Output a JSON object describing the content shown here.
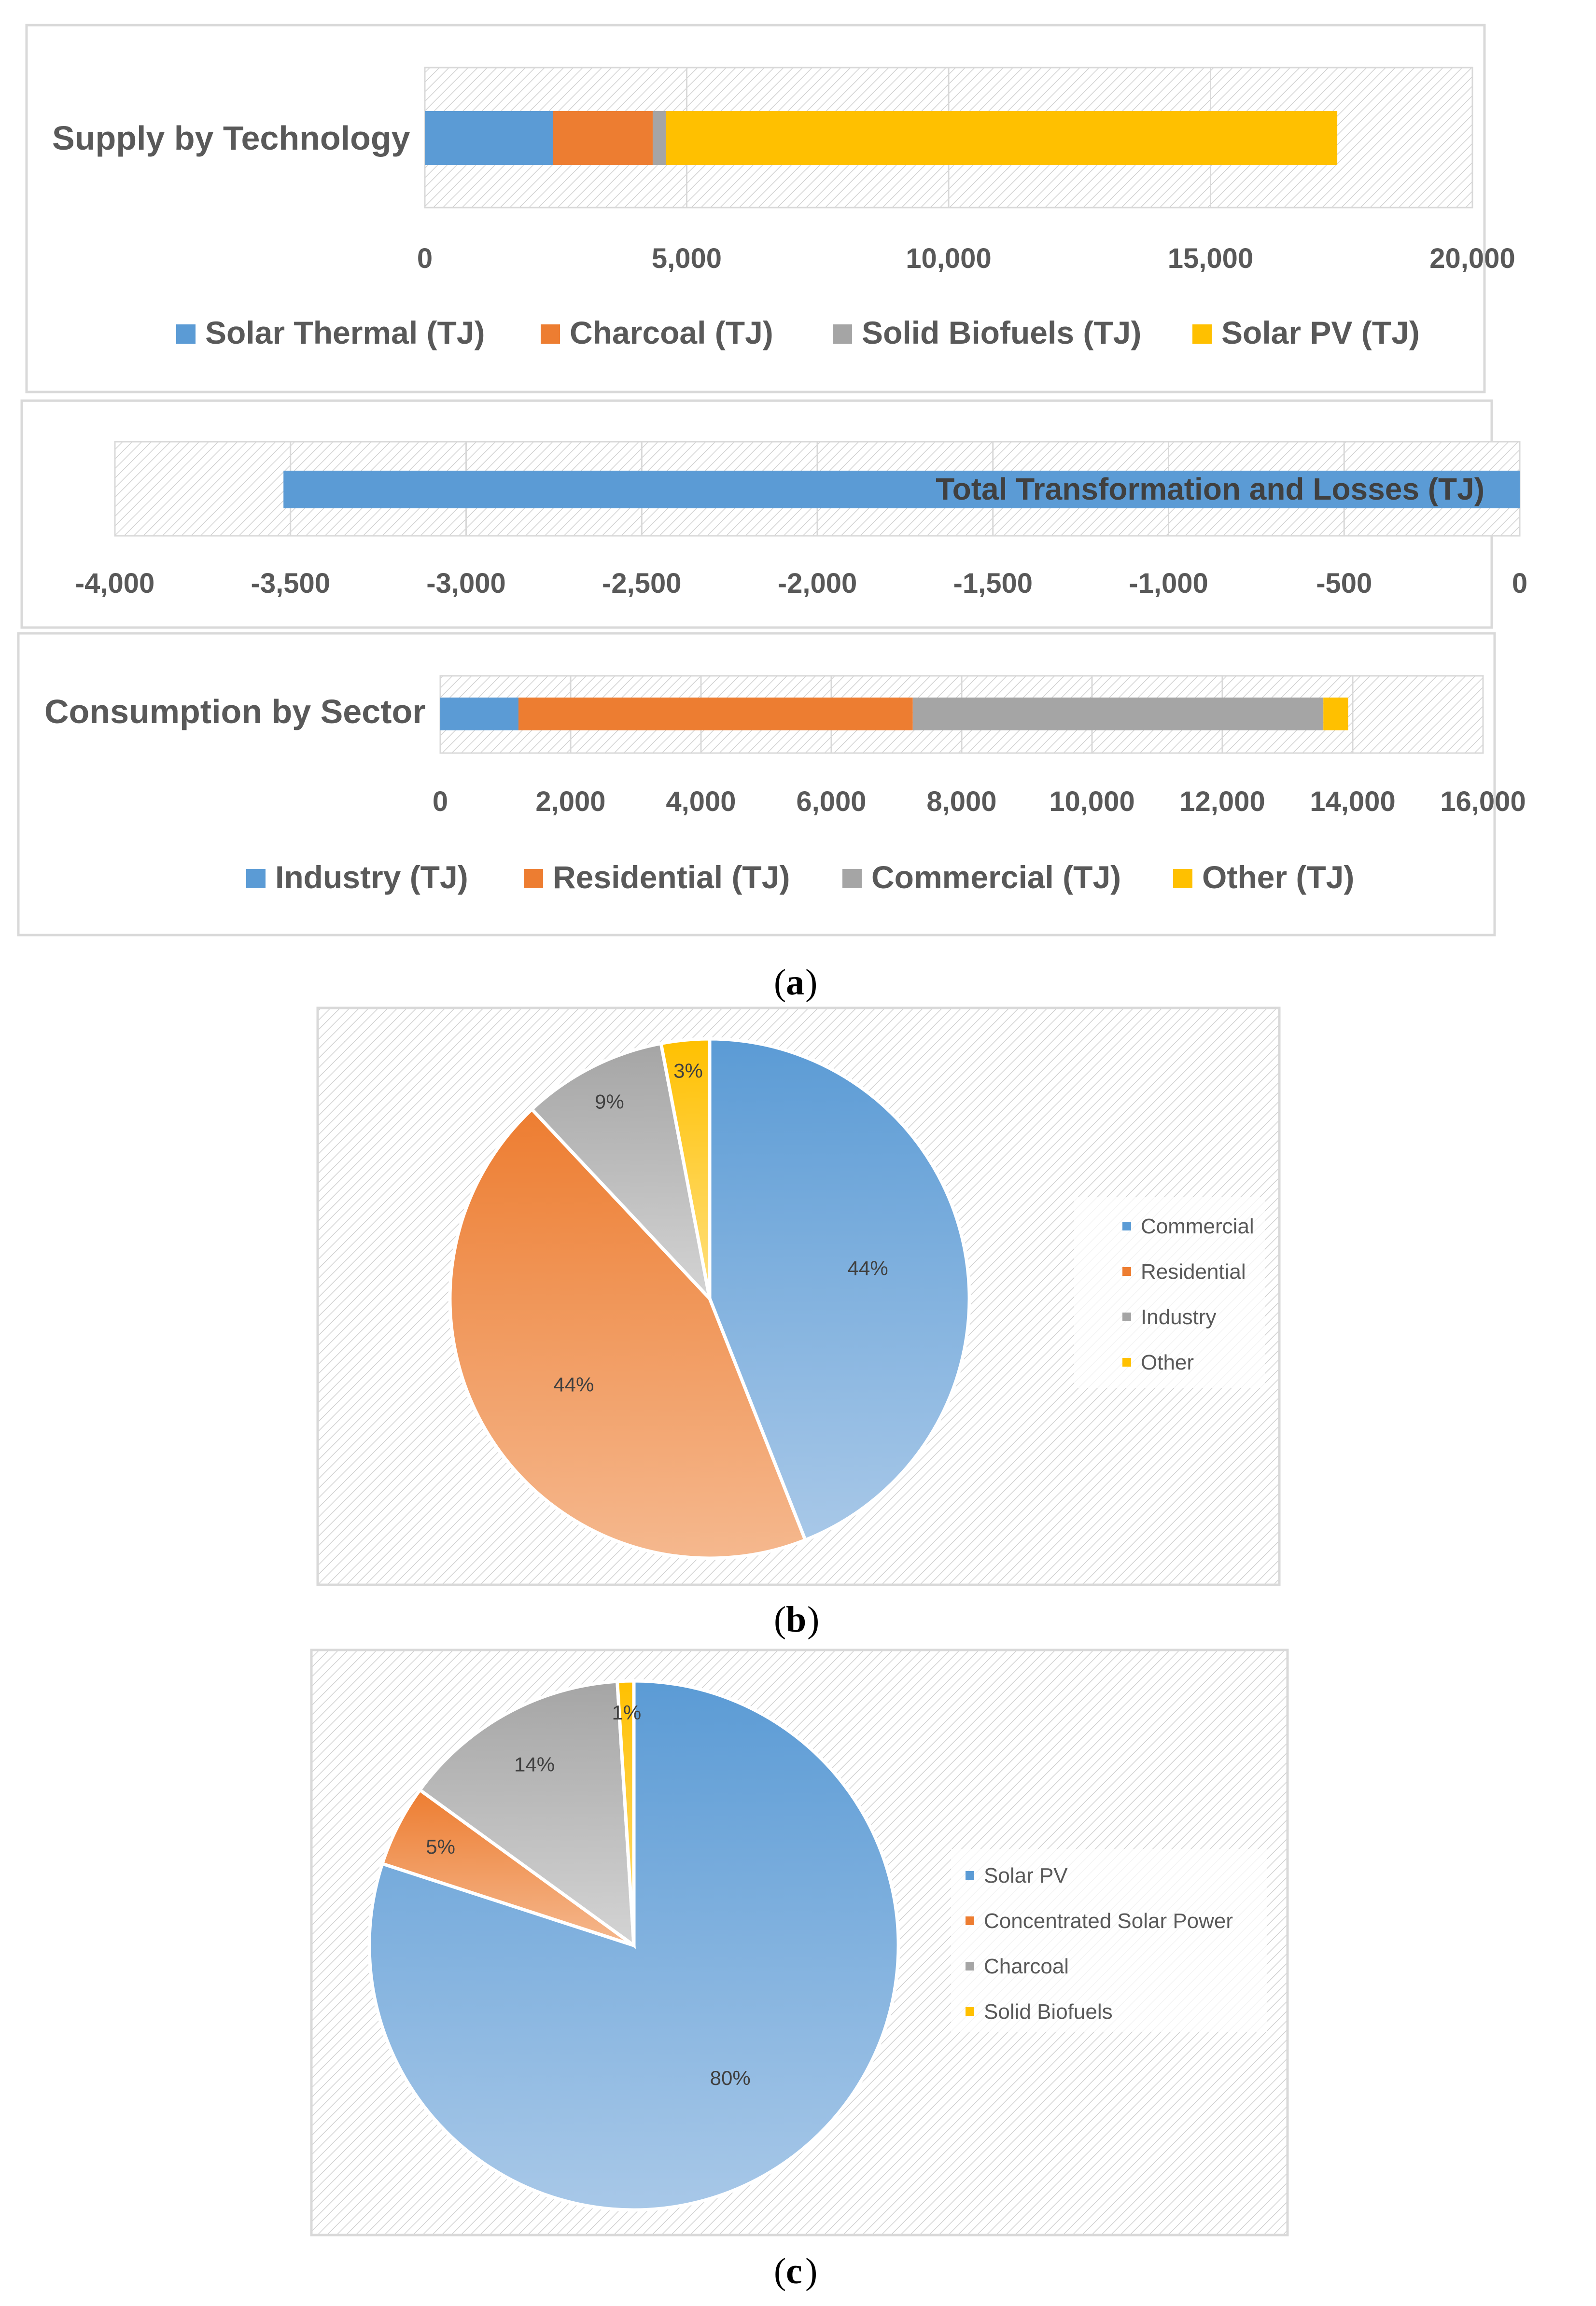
{
  "colors": {
    "blue": "#5B9BD5",
    "orange": "#ED7D31",
    "gray": "#A5A5A5",
    "yellow": "#FFC000",
    "axis_text": "#595959",
    "frame": "#D9D9D9"
  },
  "panel_a": {
    "caption": "a",
    "chart_supply": {
      "type": "bar",
      "orientation": "horizontal-stacked",
      "title": "Supply by Technology",
      "xlim": [
        0,
        20000
      ],
      "ticks": [
        "0",
        "5,000",
        "10,000",
        "15,000",
        "20,000"
      ],
      "tick_values": [
        0,
        5000,
        10000,
        15000,
        20000
      ],
      "series": [
        {
          "name": "Solar Thermal (TJ)",
          "value": 2450,
          "color": "#5B9BD5"
        },
        {
          "name": "Charcoal (TJ)",
          "value": 1900,
          "color": "#ED7D31"
        },
        {
          "name": "Solid Biofuels (TJ)",
          "value": 250,
          "color": "#A5A5A5"
        },
        {
          "name": "Solar PV  (TJ)",
          "value": 12820,
          "color": "#FFC000"
        }
      ]
    },
    "chart_losses": {
      "type": "bar",
      "orientation": "horizontal",
      "label": "Total Transformation and Losses (TJ)",
      "value": -3520,
      "xlim": [
        -4000,
        0
      ],
      "ticks": [
        "-4,000",
        "-3,500",
        "-3,000",
        "-2,500",
        "-2,000",
        "-1,500",
        "-1,000",
        "-500",
        "0"
      ],
      "tick_values": [
        -4000,
        -3500,
        -3000,
        -2500,
        -2000,
        -1500,
        -1000,
        -500,
        0
      ],
      "color": "#5B9BD5"
    },
    "chart_consumption": {
      "type": "bar",
      "orientation": "horizontal-stacked",
      "title": "Consumption by Sector",
      "xlim": [
        0,
        16000
      ],
      "ticks": [
        "0",
        "2,000",
        "4,000",
        "6,000",
        "8,000",
        "10,000",
        "12,000",
        "14,000",
        "16,000"
      ],
      "tick_values": [
        0,
        2000,
        4000,
        6000,
        8000,
        10000,
        12000,
        14000,
        16000
      ],
      "series": [
        {
          "name": "Industry (TJ)",
          "value": 1200,
          "color": "#5B9BD5"
        },
        {
          "name": "Residential (TJ)",
          "value": 6050,
          "color": "#ED7D31"
        },
        {
          "name": "Commercial (TJ)",
          "value": 6300,
          "color": "#A5A5A5"
        },
        {
          "name": "Other (TJ)",
          "value": 380,
          "color": "#FFC000"
        }
      ]
    }
  },
  "panel_b": {
    "caption": "b",
    "chart": {
      "type": "pie",
      "slices": [
        {
          "name": "Commercial",
          "value": 44,
          "label": "44%",
          "color": "#5B9BD5"
        },
        {
          "name": "Residential",
          "value": 44,
          "label": "44%",
          "color": "#ED7D31"
        },
        {
          "name": "Industry",
          "value": 9,
          "label": "9%",
          "color": "#A5A5A5"
        },
        {
          "name": "Other",
          "value": 3,
          "label": "3%",
          "color": "#FFC000"
        }
      ]
    }
  },
  "panel_c": {
    "caption": "c",
    "chart": {
      "type": "pie",
      "slices": [
        {
          "name": "Solar PV",
          "value": 80,
          "label": "80%",
          "color": "#5B9BD5"
        },
        {
          "name": "Concentrated Solar Power",
          "value": 5,
          "label": "5%",
          "color": "#ED7D31"
        },
        {
          "name": "Charcoal",
          "value": 14,
          "label": "14%",
          "color": "#A5A5A5"
        },
        {
          "name": "Solid Biofuels",
          "value": 1,
          "label": "1%",
          "color": "#FFC000"
        }
      ]
    }
  },
  "chart_data": [
    {
      "type": "bar",
      "title": "Supply by Technology",
      "categories": [
        "Supply by Technology"
      ],
      "series": [
        {
          "name": "Solar Thermal (TJ)",
          "values": [
            2450
          ]
        },
        {
          "name": "Charcoal (TJ)",
          "values": [
            1900
          ]
        },
        {
          "name": "Solid Biofuels (TJ)",
          "values": [
            250
          ]
        },
        {
          "name": "Solar PV  (TJ)",
          "values": [
            12820
          ]
        }
      ],
      "xlim": [
        0,
        20000
      ]
    },
    {
      "type": "bar",
      "title": "Total Transformation and Losses (TJ)",
      "values": [
        -3520
      ],
      "xlim": [
        -4000,
        0
      ]
    },
    {
      "type": "bar",
      "title": "Consumption by Sector",
      "categories": [
        "Consumption by Sector"
      ],
      "series": [
        {
          "name": "Industry (TJ)",
          "values": [
            1200
          ]
        },
        {
          "name": "Residential (TJ)",
          "values": [
            6050
          ]
        },
        {
          "name": "Commercial (TJ)",
          "values": [
            6300
          ]
        },
        {
          "name": "Other (TJ)",
          "values": [
            380
          ]
        }
      ],
      "xlim": [
        0,
        16000
      ]
    },
    {
      "type": "pie",
      "labels": [
        "Commercial",
        "Residential",
        "Industry",
        "Other"
      ],
      "values": [
        44,
        44,
        9,
        3
      ]
    },
    {
      "type": "pie",
      "labels": [
        "Solar PV",
        "Concentrated Solar Power",
        "Charcoal",
        "Solid Biofuels"
      ],
      "values": [
        80,
        5,
        14,
        1
      ]
    }
  ]
}
